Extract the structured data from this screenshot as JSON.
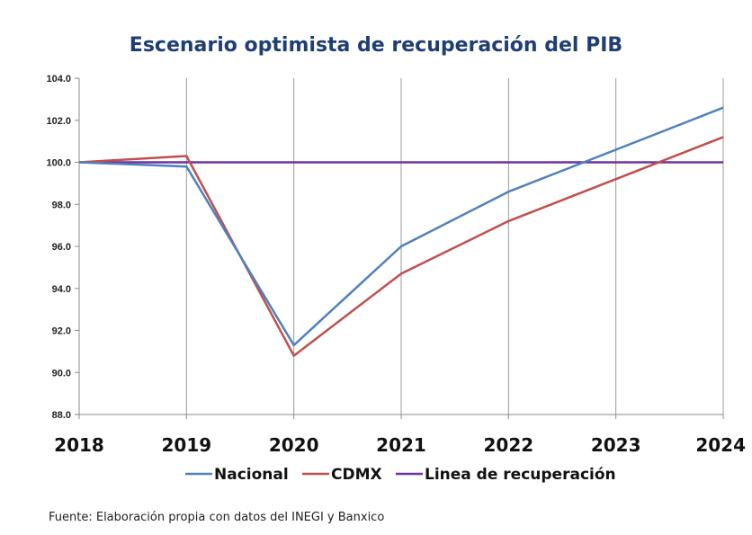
{
  "chart_data": {
    "type": "line",
    "title": "Escenario optimista de recuperación del PIB",
    "xlabel": "",
    "ylabel": "",
    "categories": [
      "2018",
      "2019",
      "2020",
      "2021",
      "2022",
      "2023",
      "2024"
    ],
    "ylim": [
      88.0,
      104.0
    ],
    "yticks": [
      "88.0",
      "90.0",
      "92.0",
      "94.0",
      "96.0",
      "98.0",
      "100.0",
      "102.0",
      "104.0"
    ],
    "grid": "vertical",
    "legend_position": "bottom",
    "series": [
      {
        "name": "Nacional",
        "color": "#4f81bd",
        "values": [
          100.0,
          99.8,
          91.3,
          96.0,
          98.6,
          100.6,
          102.6
        ]
      },
      {
        "name": "CDMX",
        "color": "#c0504d",
        "values": [
          100.0,
          100.3,
          90.8,
          94.7,
          97.2,
          99.2,
          101.2
        ]
      },
      {
        "name": "Linea de recuperación",
        "color": "#7030a0",
        "values": [
          100.0,
          100.0,
          100.0,
          100.0,
          100.0,
          100.0,
          100.0
        ]
      }
    ]
  },
  "source_note": "Fuente: Elaboración propia con datos del INEGI y Banxico"
}
